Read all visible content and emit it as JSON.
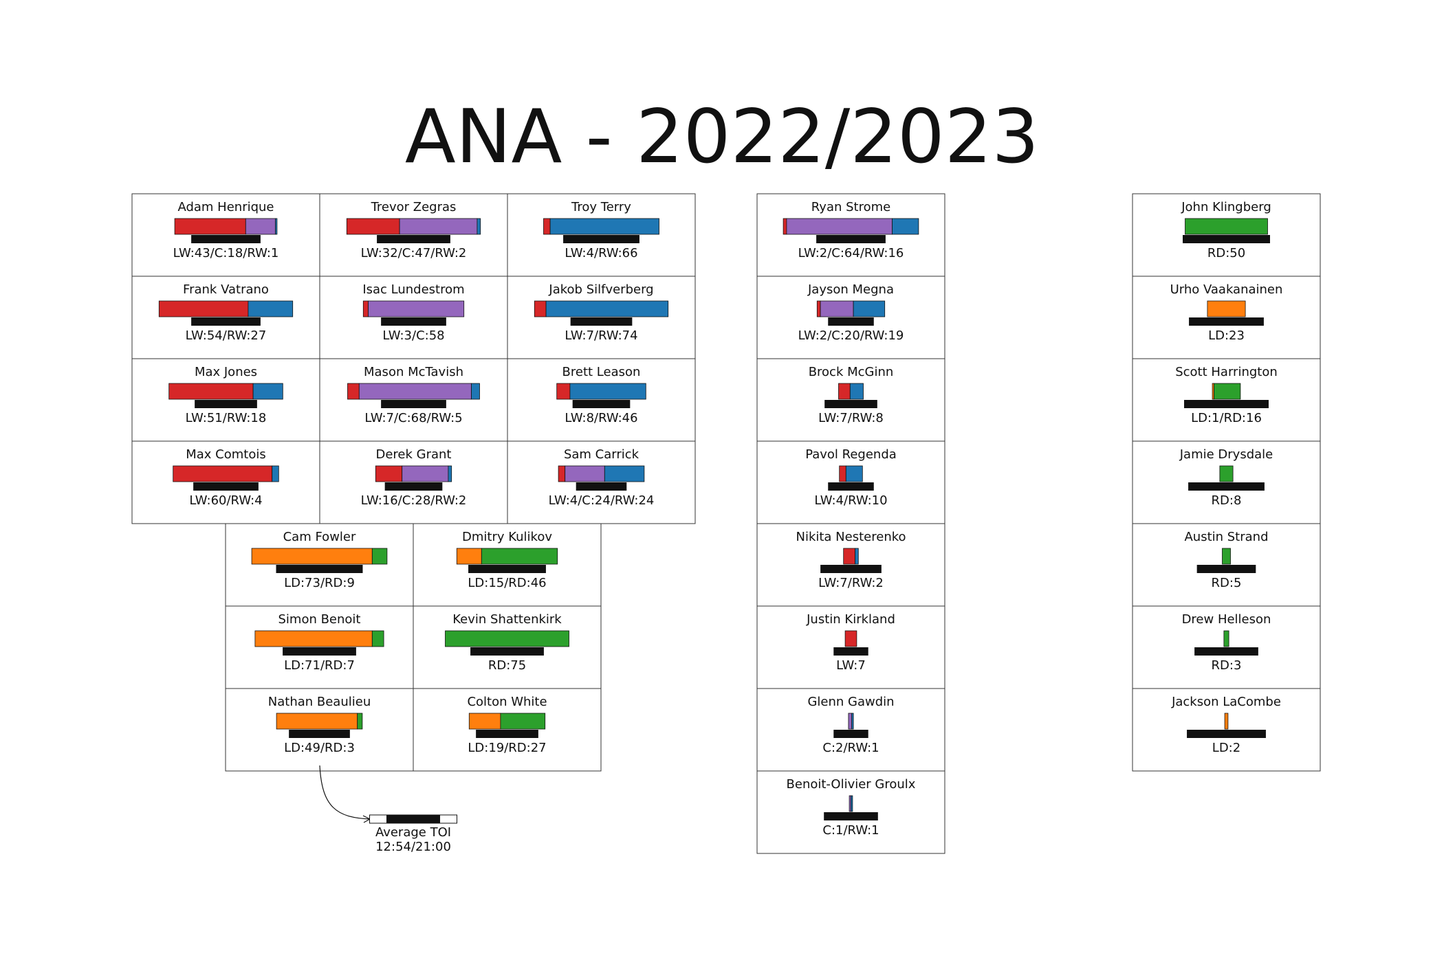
{
  "title": "ANA - 2022/2023",
  "colors": {
    "LW": "#d62728",
    "C": "#9467bd",
    "RW": "#1f77b4",
    "LD": "#ff7f0e",
    "RD": "#2ca02c",
    "TOI": "#111111"
  },
  "chart_data": {
    "type": "bar",
    "title": "ANA - 2022/2023",
    "toi_axis_max_seconds": 1260,
    "legend": {
      "label": "Average TOI",
      "range": "12:54/21:00",
      "range_low_seconds": 774,
      "range_high_seconds": 1260
    },
    "players": [
      {
        "name": "Adam Henrique",
        "label": "LW:43/C:18/RW:1",
        "segments": [
          [
            "LW",
            43
          ],
          [
            "C",
            18
          ],
          [
            "RW",
            1
          ]
        ],
        "toi_seconds": 1000
      },
      {
        "name": "Trevor Zegras",
        "label": "LW:32/C:47/RW:2",
        "segments": [
          [
            "LW",
            32
          ],
          [
            "C",
            47
          ],
          [
            "RW",
            2
          ]
        ],
        "toi_seconds": 1060
      },
      {
        "name": "Troy Terry",
        "label": "LW:4/RW:66",
        "segments": [
          [
            "LW",
            4
          ],
          [
            "RW",
            66
          ]
        ],
        "toi_seconds": 1100
      },
      {
        "name": "Frank Vatrano",
        "label": "LW:54/RW:27",
        "segments": [
          [
            "LW",
            54
          ],
          [
            "RW",
            27
          ]
        ],
        "toi_seconds": 1000
      },
      {
        "name": "Isac Lundestrom",
        "label": "LW:3/C:58",
        "segments": [
          [
            "LW",
            3
          ],
          [
            "C",
            58
          ]
        ],
        "toi_seconds": 940
      },
      {
        "name": "Jakob Silfverberg",
        "label": "LW:7/RW:74",
        "segments": [
          [
            "LW",
            7
          ],
          [
            "RW",
            74
          ]
        ],
        "toi_seconds": 890
      },
      {
        "name": "Max Jones",
        "label": "LW:51/RW:18",
        "segments": [
          [
            "LW",
            51
          ],
          [
            "RW",
            18
          ]
        ],
        "toi_seconds": 900
      },
      {
        "name": "Mason McTavish",
        "label": "LW:7/C:68/RW:5",
        "segments": [
          [
            "LW",
            7
          ],
          [
            "C",
            68
          ],
          [
            "RW",
            5
          ]
        ],
        "toi_seconds": 940
      },
      {
        "name": "Brett Leason",
        "label": "LW:8/RW:46",
        "segments": [
          [
            "LW",
            8
          ],
          [
            "RW",
            46
          ]
        ],
        "toi_seconds": 830
      },
      {
        "name": "Max Comtois",
        "label": "LW:60/RW:4",
        "segments": [
          [
            "LW",
            60
          ],
          [
            "RW",
            4
          ]
        ],
        "toi_seconds": 940
      },
      {
        "name": "Derek Grant",
        "label": "LW:16/C:28/RW:2",
        "segments": [
          [
            "LW",
            16
          ],
          [
            "C",
            28
          ],
          [
            "RW",
            2
          ]
        ],
        "toi_seconds": 830
      },
      {
        "name": "Sam Carrick",
        "label": "LW:4/C:24/RW:24",
        "segments": [
          [
            "LW",
            4
          ],
          [
            "C",
            24
          ],
          [
            "RW",
            24
          ]
        ],
        "toi_seconds": 730
      },
      {
        "name": "Cam Fowler",
        "label": "LD:73/RD:9",
        "segments": [
          [
            "LD",
            73
          ],
          [
            "RD",
            9
          ]
        ],
        "toi_seconds": 1250
      },
      {
        "name": "Dmitry Kulikov",
        "label": "LD:15/RD:46",
        "segments": [
          [
            "LD",
            15
          ],
          [
            "RD",
            46
          ]
        ],
        "toi_seconds": 1120
      },
      {
        "name": "Simon Benoit",
        "label": "LD:71/RD:7",
        "segments": [
          [
            "LD",
            71
          ],
          [
            "RD",
            7
          ]
        ],
        "toi_seconds": 1060
      },
      {
        "name": "Kevin Shattenkirk",
        "label": "RD:75",
        "segments": [
          [
            "RD",
            75
          ]
        ],
        "toi_seconds": 1060
      },
      {
        "name": "Nathan Beaulieu",
        "label": "LD:49/RD:3",
        "segments": [
          [
            "LD",
            49
          ],
          [
            "RD",
            3
          ]
        ],
        "toi_seconds": 880
      },
      {
        "name": "Colton White",
        "label": "LD:19/RD:27",
        "segments": [
          [
            "LD",
            19
          ],
          [
            "RD",
            27
          ]
        ],
        "toi_seconds": 900
      },
      {
        "name": "Ryan Strome",
        "label": "LW:2/C:64/RW:16",
        "segments": [
          [
            "LW",
            2
          ],
          [
            "C",
            64
          ],
          [
            "RW",
            16
          ]
        ],
        "toi_seconds": 1000
      },
      {
        "name": "Jayson Megna",
        "label": "LW:2/C:20/RW:19",
        "segments": [
          [
            "LW",
            2
          ],
          [
            "C",
            20
          ],
          [
            "RW",
            19
          ]
        ],
        "toi_seconds": 660
      },
      {
        "name": "Brock McGinn",
        "label": "LW:7/RW:8",
        "segments": [
          [
            "LW",
            7
          ],
          [
            "RW",
            8
          ]
        ],
        "toi_seconds": 760
      },
      {
        "name": "Pavol Regenda",
        "label": "LW:4/RW:10",
        "segments": [
          [
            "LW",
            4
          ],
          [
            "RW",
            10
          ]
        ],
        "toi_seconds": 660
      },
      {
        "name": "Nikita Nesterenko",
        "label": "LW:7/RW:2",
        "segments": [
          [
            "LW",
            7
          ],
          [
            "RW",
            2
          ]
        ],
        "toi_seconds": 880
      },
      {
        "name": "Justin Kirkland",
        "label": "LW:7",
        "segments": [
          [
            "LW",
            7
          ]
        ],
        "toi_seconds": 500
      },
      {
        "name": "Glenn Gawdin",
        "label": "C:2/RW:1",
        "segments": [
          [
            "C",
            2
          ],
          [
            "RW",
            1
          ]
        ],
        "toi_seconds": 500
      },
      {
        "name": "Benoit-Olivier Groulx",
        "label": "C:1/RW:1",
        "segments": [
          [
            "C",
            1
          ],
          [
            "RW",
            1
          ]
        ],
        "toi_seconds": 780
      },
      {
        "name": "John Klingberg",
        "label": "RD:50",
        "segments": [
          [
            "RD",
            50
          ]
        ],
        "toi_seconds": 1260
      },
      {
        "name": "Urho Vaakanainen",
        "label": "LD:23",
        "segments": [
          [
            "LD",
            23
          ]
        ],
        "toi_seconds": 1080
      },
      {
        "name": "Scott Harrington",
        "label": "LD:1/RD:16",
        "segments": [
          [
            "LD",
            1
          ],
          [
            "RD",
            16
          ]
        ],
        "toi_seconds": 1220
      },
      {
        "name": "Jamie Drysdale",
        "label": "RD:8",
        "segments": [
          [
            "RD",
            8
          ]
        ],
        "toi_seconds": 1100
      },
      {
        "name": "Austin Strand",
        "label": "RD:5",
        "segments": [
          [
            "RD",
            5
          ]
        ],
        "toi_seconds": 850
      },
      {
        "name": "Drew Helleson",
        "label": "RD:3",
        "segments": [
          [
            "RD",
            3
          ]
        ],
        "toi_seconds": 920
      },
      {
        "name": "Jackson LaCombe",
        "label": "LD:2",
        "segments": [
          [
            "LD",
            2
          ]
        ],
        "toi_seconds": 1140
      }
    ]
  }
}
